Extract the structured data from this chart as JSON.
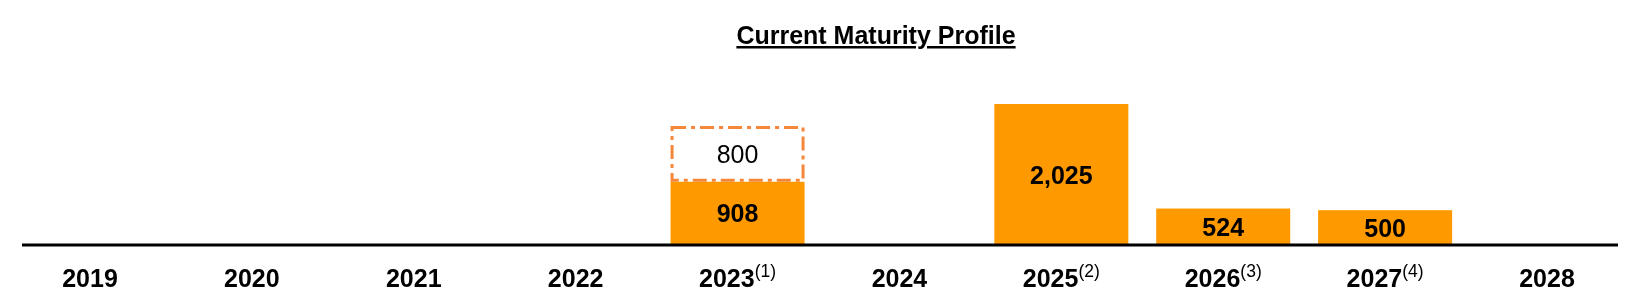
{
  "chart_data": {
    "type": "bar",
    "title": "Current Maturity Profile",
    "stacked": true,
    "categories": [
      "2019",
      "2020",
      "2021",
      "2022",
      "2023$^{(1)}$",
      "2024",
      "2025$^{(2)}$",
      "2026$^{(3)}$",
      "2027$^{(4)}$",
      "2028"
    ],
    "series": [
      {
        "color": "#ff9900",
        "values": [
          null,
          null,
          null,
          null,
          908,
          null,
          2025,
          524,
          500,
          null
        ],
        "value_labels": [
          null,
          null,
          null,
          null,
          "908",
          null,
          "2,025",
          "524",
          "500",
          null
        ]
      },
      {
        "color": "#f4873a",
        "line_style": "dashed",
        "values": [
          null,
          null,
          null,
          null,
          800,
          null,
          null,
          null,
          null,
          null
        ],
        "value_labels": [
          null,
          null,
          null,
          null,
          "800",
          null,
          null,
          null,
          null,
          null
        ]
      }
    ]
  }
}
